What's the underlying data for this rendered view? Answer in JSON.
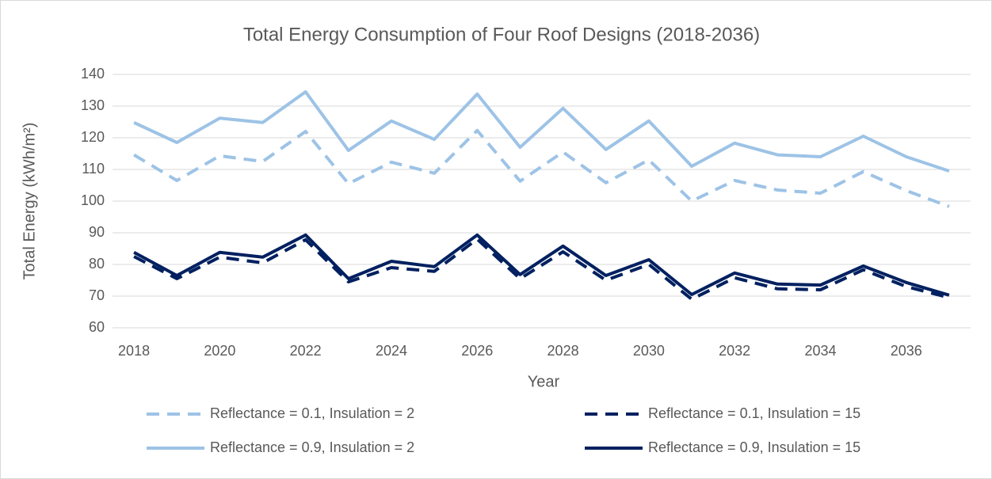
{
  "chart_data": {
    "type": "line",
    "title": "Total Energy Consumption of Four Roof Designs (2018-2036)",
    "x_label": "Year",
    "y_label": "Total Energy (kWh/m²)",
    "categories": [
      "2018",
      null,
      "2020",
      null,
      "2022",
      null,
      "2024",
      null,
      "2026",
      null,
      "2028",
      null,
      "2030",
      null,
      "2032",
      null,
      "2034",
      null,
      "2036",
      null
    ],
    "series": [
      {
        "name": "Reflectance = 0.1, Insulation = 2",
        "color": "#9dc3e6",
        "dashed": true,
        "values": [
          114.6,
          106.5,
          114.3,
          112.5,
          122,
          105.5,
          112.3,
          108.8,
          122.3,
          106.3,
          115.5,
          105.8,
          113,
          100,
          106.5,
          103.5,
          102.5,
          109.3,
          103.3,
          98.3
        ]
      },
      {
        "name": "Reflectance = 0.1, Insulation = 15",
        "color": "#002060",
        "dashed": true,
        "values": [
          82.5,
          75.5,
          82.3,
          80.5,
          87.8,
          74.5,
          79,
          77.8,
          88,
          75.5,
          84,
          75,
          80,
          69,
          75.8,
          72.3,
          72,
          78.3,
          73,
          69.5
        ]
      },
      {
        "name": "Reflectance = 0.9, Insulation = 2",
        "color": "#9dc3e6",
        "dashed": false,
        "values": [
          124.8,
          118.5,
          126.2,
          124.8,
          134.5,
          116,
          125.3,
          119.5,
          133.8,
          117,
          129.3,
          116.3,
          125.3,
          111,
          118.3,
          114.6,
          114,
          120.5,
          114,
          109.5
        ]
      },
      {
        "name": "Reflectance = 0.9, Insulation = 15",
        "color": "#002060",
        "dashed": false,
        "values": [
          83.8,
          76.5,
          83.8,
          82.3,
          89.3,
          75.5,
          81,
          79.3,
          89.3,
          76.8,
          85.8,
          76.5,
          81.5,
          70.5,
          77.3,
          73.8,
          73.5,
          79.5,
          74.3,
          70.3
        ]
      }
    ],
    "ylim": [
      60,
      140
    ],
    "yticks": [
      60,
      70,
      80,
      90,
      100,
      110,
      120,
      130,
      140
    ],
    "grid": true,
    "legend": "bottom"
  }
}
